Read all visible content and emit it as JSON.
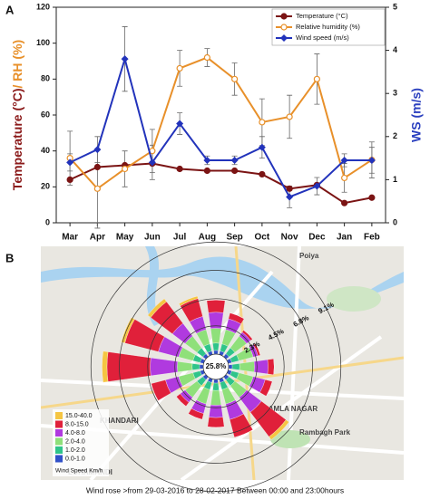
{
  "chart_data": [
    {
      "type": "line",
      "panel": "A",
      "categories": [
        "Mar",
        "Apr",
        "May",
        "Jun",
        "Jul",
        "Aug",
        "Sep",
        "Oct",
        "Nov",
        "Dec",
        "Jan",
        "Feb"
      ],
      "ylabel": {
        "parts": [
          {
            "text": "Temperature (°C)",
            "color": "#8b1a1a"
          },
          {
            "text": "/ RH (%)",
            "color": "#e8902a"
          }
        ]
      },
      "y2label": "WS (m/s)",
      "y2label_color": "#2a3fbf",
      "ylim": [
        0,
        120
      ],
      "yticks": [
        0,
        20,
        40,
        60,
        80,
        100,
        120
      ],
      "y2lim": [
        0,
        5
      ],
      "y2ticks": [
        0,
        1,
        2,
        3,
        4,
        5
      ],
      "legend": "upper right",
      "series": [
        {
          "name": "Temperature (°C)",
          "color": "#7b1414",
          "marker": "circle",
          "values": [
            24,
            31,
            32,
            33,
            30,
            29,
            29,
            27,
            19,
            21,
            11,
            14
          ]
        },
        {
          "name": "Relative humidity (%)",
          "color": "#e8902a",
          "marker": "open-circle",
          "values": [
            36,
            19,
            30,
            40,
            86,
            92,
            80,
            56,
            59,
            80,
            25,
            35
          ],
          "errors": [
            15,
            22,
            10,
            12,
            10,
            5,
            9,
            13,
            12,
            14,
            8,
            10
          ]
        },
        {
          "name": "Wind speed (m/s)",
          "color": "#2233bb",
          "marker": "diamond",
          "axis": "y2",
          "values": [
            1.4,
            1.7,
            3.8,
            1.4,
            2.3,
            1.45,
            1.45,
            1.75,
            0.6,
            0.85,
            1.45,
            1.45
          ],
          "errors": [
            0.2,
            0.3,
            0.75,
            0.4,
            0.25,
            0.1,
            0.1,
            0.25,
            0.25,
            0.2,
            0.15,
            0.3
          ]
        }
      ]
    },
    {
      "type": "windrose",
      "panel": "B",
      "calm": {
        "value": 25.8,
        "label": "25.8%"
      },
      "rticks": [
        {
          "value": 2.3,
          "label": "2.3%"
        },
        {
          "value": 4.5,
          "label": "4.5%"
        },
        {
          "value": 6.8,
          "label": "6.8%"
        },
        {
          "value": 9.1,
          "label": "9.1%"
        }
      ],
      "legend_title": "Wind Speed Km/h",
      "caption": "Wind rose >from 29-03-2016 to 28-02-2017 Between 00:00 and 23:00hours",
      "map_labels": [
        "Poiya",
        "KAMLA NAGAR",
        "Rambagh Park",
        "KHANDARI",
        "LOHAMANDI"
      ],
      "series": [
        {
          "name": "15.0-40.0",
          "color": "#f5c542",
          "values": [
            0,
            0,
            0,
            0,
            0,
            0,
            0.3,
            0,
            0,
            0,
            0,
            0,
            0.4,
            0.3,
            0.3,
            0.2
          ]
        },
        {
          "name": "8.0-15.0",
          "color": "#e0203a",
          "values": [
            1.0,
            0.5,
            0.2,
            0.2,
            0.5,
            0.6,
            2.5,
            1.5,
            0.8,
            0.5,
            0.4,
            1.2,
            3.5,
            2.8,
            2.2,
            1.5
          ]
        },
        {
          "name": "4.0-8.0",
          "color": "#b03adf",
          "values": [
            1.3,
            0.9,
            0.4,
            0.4,
            1.1,
            1.0,
            1.5,
            1.3,
            1.0,
            0.8,
            0.5,
            1.1,
            2.2,
            1.7,
            1.3,
            1.1
          ]
        },
        {
          "name": "2.0-4.0",
          "color": "#8fe07a",
          "values": [
            1.2,
            1.2,
            1.2,
            1.2,
            1.2,
            1.2,
            1.2,
            1.2,
            1.2,
            1.2,
            1.2,
            1.2,
            1.2,
            1.2,
            1.2,
            1.2
          ]
        },
        {
          "name": "1.0-2.0",
          "color": "#2fc48a",
          "values": [
            0.6,
            0.6,
            0.6,
            0.6,
            0.6,
            0.6,
            0.6,
            0.6,
            0.6,
            0.6,
            0.6,
            0.6,
            0.6,
            0.6,
            0.6,
            0.6
          ]
        },
        {
          "name": "0.0-1.0",
          "color": "#3050c8",
          "values": [
            0.3,
            0.3,
            0.3,
            0.3,
            0.3,
            0.3,
            0.3,
            0.3,
            0.3,
            0.3,
            0.3,
            0.3,
            0.3,
            0.3,
            0.3,
            0.3
          ]
        }
      ]
    }
  ]
}
